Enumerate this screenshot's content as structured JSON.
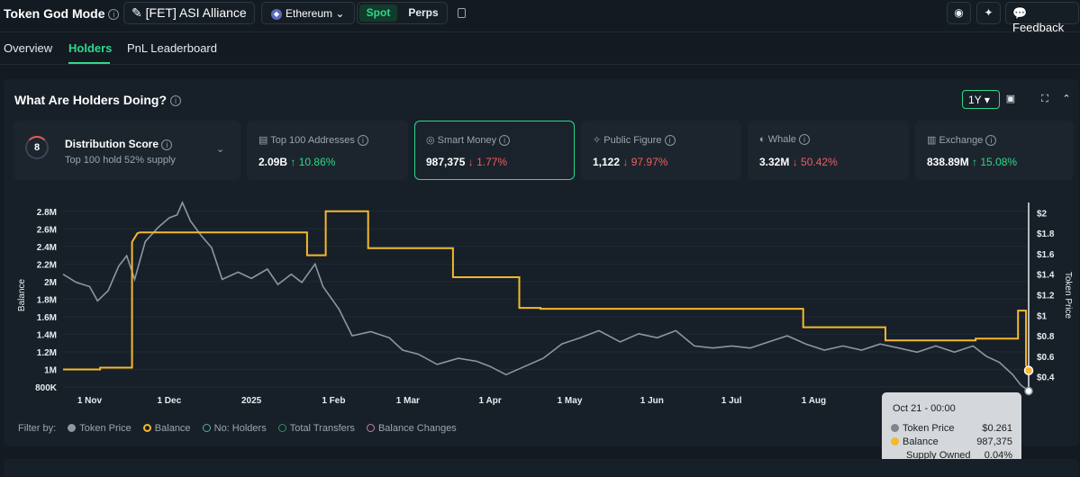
{
  "header": {
    "title": "Token God Mode",
    "token": "[FET] ASI Alliance",
    "network": "Ethereum",
    "spot": "Spot",
    "perps": "Perps",
    "feedback": "Feedback"
  },
  "tabs": [
    "Overview",
    "Holders",
    "PnL Leaderboard"
  ],
  "panel": {
    "title": "What Are Holders Doing?",
    "period": "1Y"
  },
  "distribution": {
    "score": "8",
    "title": "Distribution Score",
    "subtitle": "Top 100 hold 52% supply"
  },
  "cards": [
    {
      "label": "Top 100 Addresses",
      "value": "2.09B",
      "change": "↑ 10.86%",
      "direction": "up"
    },
    {
      "label": "Smart Money",
      "value": "987,375",
      "change": "↓ 1.77%",
      "direction": "down"
    },
    {
      "label": "Public Figure",
      "value": "1,122",
      "change": "↓ 97.97%",
      "direction": "down"
    },
    {
      "label": "Whale",
      "value": "3.32M",
      "change": "↓ 50.42%",
      "direction": "down"
    },
    {
      "label": "Exchange",
      "value": "838.89M",
      "change": "↑ 15.08%",
      "direction": "up"
    }
  ],
  "chart_data": {
    "type": "line",
    "ylabel": "Balance",
    "y2label": "Token Price",
    "y_ticks": [
      "2.8M",
      "2.6M",
      "2.4M",
      "2.2M",
      "2M",
      "1.8M",
      "1.6M",
      "1.4M",
      "1.2M",
      "1M",
      "800K"
    ],
    "y2_ticks": [
      "$2",
      "$1.8",
      "$1.6",
      "$1.4",
      "$1.2",
      "$1",
      "$0.8",
      "$0.6",
      "$0.4"
    ],
    "x_ticks": [
      "1 Nov",
      "1 Dec",
      "2025",
      "1 Feb",
      "1 Mar",
      "1 Apr",
      "1 May",
      "1 Jun",
      "1 Jul",
      "1 Aug"
    ],
    "ylim": [
      800000,
      2900000
    ],
    "y2lim": [
      0.3,
      2.1
    ],
    "series": [
      {
        "name": "Balance",
        "color": "#f5b82e",
        "points": [
          [
            "2024-10-22",
            1000000
          ],
          [
            "2024-11-05",
            1000000
          ],
          [
            "2024-11-05",
            1020000
          ],
          [
            "2024-11-17",
            1020000
          ],
          [
            "2024-11-17",
            2450000
          ],
          [
            "2024-11-19",
            2550000
          ],
          [
            "2024-11-20",
            2560000
          ],
          [
            "2025-01-22",
            2560000
          ],
          [
            "2025-01-22",
            2300000
          ],
          [
            "2025-01-29",
            2300000
          ],
          [
            "2025-01-29",
            2800000
          ],
          [
            "2025-02-14",
            2800000
          ],
          [
            "2025-02-14",
            2380000
          ],
          [
            "2025-03-18",
            2380000
          ],
          [
            "2025-03-18",
            2050000
          ],
          [
            "2025-04-12",
            2050000
          ],
          [
            "2025-04-12",
            1700000
          ],
          [
            "2025-04-20",
            1700000
          ],
          [
            "2025-04-20",
            1690000
          ],
          [
            "2025-07-28",
            1690000
          ],
          [
            "2025-07-28",
            1480000
          ],
          [
            "2025-08-28",
            1480000
          ],
          [
            "2025-08-28",
            1330000
          ],
          [
            "2025-10-01",
            1330000
          ],
          [
            "2025-10-01",
            1350000
          ],
          [
            "2025-10-17",
            1350000
          ],
          [
            "2025-10-17",
            1670000
          ],
          [
            "2025-10-20",
            1670000
          ],
          [
            "2025-10-20",
            1050000
          ],
          [
            "2025-10-21",
            987375
          ]
        ]
      },
      {
        "name": "Token Price",
        "color": "#8d979f",
        "points": [
          [
            "2024-10-22",
            1.4
          ],
          [
            "2024-10-27",
            1.32
          ],
          [
            "2024-11-01",
            1.28
          ],
          [
            "2024-11-04",
            1.14
          ],
          [
            "2024-11-08",
            1.24
          ],
          [
            "2024-11-12",
            1.48
          ],
          [
            "2024-11-15",
            1.58
          ],
          [
            "2024-11-18",
            1.35
          ],
          [
            "2024-11-22",
            1.72
          ],
          [
            "2024-11-27",
            1.86
          ],
          [
            "2024-12-01",
            1.95
          ],
          [
            "2024-12-04",
            1.98
          ],
          [
            "2024-12-06",
            2.1
          ],
          [
            "2024-12-09",
            1.92
          ],
          [
            "2024-12-13",
            1.78
          ],
          [
            "2024-12-17",
            1.66
          ],
          [
            "2024-12-21",
            1.35
          ],
          [
            "2024-12-27",
            1.42
          ],
          [
            "2025-01-01",
            1.36
          ],
          [
            "2025-01-07",
            1.45
          ],
          [
            "2025-01-11",
            1.3
          ],
          [
            "2025-01-16",
            1.4
          ],
          [
            "2025-01-20",
            1.32
          ],
          [
            "2025-01-25",
            1.5
          ],
          [
            "2025-01-28",
            1.28
          ],
          [
            "2025-02-03",
            1.06
          ],
          [
            "2025-02-08",
            0.8
          ],
          [
            "2025-02-15",
            0.84
          ],
          [
            "2025-02-22",
            0.78
          ],
          [
            "2025-02-27",
            0.66
          ],
          [
            "2025-03-05",
            0.62
          ],
          [
            "2025-03-12",
            0.52
          ],
          [
            "2025-03-20",
            0.58
          ],
          [
            "2025-03-27",
            0.55
          ],
          [
            "2025-04-01",
            0.5
          ],
          [
            "2025-04-07",
            0.42
          ],
          [
            "2025-04-14",
            0.5
          ],
          [
            "2025-04-21",
            0.58
          ],
          [
            "2025-04-28",
            0.72
          ],
          [
            "2025-05-05",
            0.78
          ],
          [
            "2025-05-12",
            0.85
          ],
          [
            "2025-05-20",
            0.74
          ],
          [
            "2025-05-27",
            0.82
          ],
          [
            "2025-06-03",
            0.78
          ],
          [
            "2025-06-10",
            0.85
          ],
          [
            "2025-06-17",
            0.7
          ],
          [
            "2025-06-24",
            0.68
          ],
          [
            "2025-07-01",
            0.7
          ],
          [
            "2025-07-08",
            0.68
          ],
          [
            "2025-07-15",
            0.74
          ],
          [
            "2025-07-22",
            0.8
          ],
          [
            "2025-07-29",
            0.72
          ],
          [
            "2025-08-05",
            0.66
          ],
          [
            "2025-08-12",
            0.7
          ],
          [
            "2025-08-19",
            0.66
          ],
          [
            "2025-08-26",
            0.72
          ],
          [
            "2025-09-02",
            0.68
          ],
          [
            "2025-09-09",
            0.64
          ],
          [
            "2025-09-16",
            0.7
          ],
          [
            "2025-09-23",
            0.64
          ],
          [
            "2025-09-30",
            0.7
          ],
          [
            "2025-10-05",
            0.6
          ],
          [
            "2025-10-10",
            0.54
          ],
          [
            "2025-10-15",
            0.42
          ],
          [
            "2025-10-18",
            0.32
          ],
          [
            "2025-10-21",
            0.261
          ]
        ]
      }
    ],
    "tooltip": {
      "title": "Oct 21 - 00:00",
      "rows": [
        {
          "label": "Token Price",
          "value": "$0.261"
        },
        {
          "label": "Balance",
          "value": "987,375"
        },
        {
          "label": "Supply Owned",
          "value": "0.04%"
        }
      ]
    }
  },
  "legend": {
    "filter_label": "Filter by:",
    "items": [
      {
        "label": "Token Price",
        "color": "#8d979f",
        "style": "filled"
      },
      {
        "label": "Balance",
        "color": "#f5b82e",
        "style": "ring"
      },
      {
        "label": "No: Holders",
        "color": "#5fa8a0",
        "style": "ring"
      },
      {
        "label": "Total Transfers",
        "color": "#2f8f66",
        "style": "ring"
      },
      {
        "label": "Balance Changes",
        "color": "#d17aa8",
        "style": "ring"
      }
    ]
  }
}
